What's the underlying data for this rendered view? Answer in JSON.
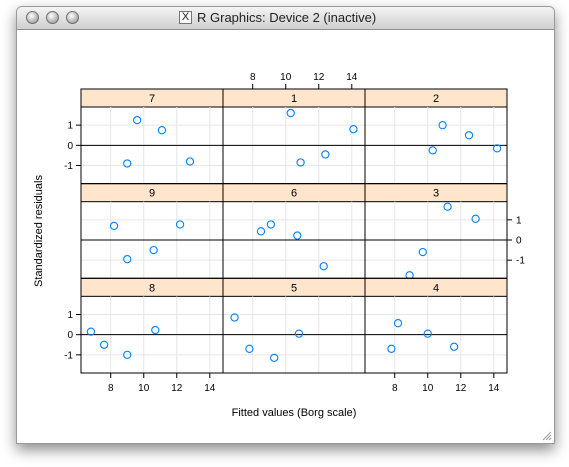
{
  "window": {
    "title": "R Graphics: Device 2 (inactive)",
    "x_badge": "X"
  },
  "colors": {
    "strip": "#ffe5cc",
    "point": "#0080ff",
    "refline": "#000000",
    "grid": "#e6e6e6"
  },
  "chart_data": {
    "type": "scatter",
    "layout": "3x3 trellis (lattice) with reference line at y=0",
    "xlabel": "Fitted values (Borg scale)",
    "ylabel": "Standardized residuals",
    "xlim": [
      6.2,
      14.8
    ],
    "ylim": [
      -1.9,
      1.9
    ],
    "x_ticks": [
      8,
      10,
      12,
      14
    ],
    "y_ticks": [
      -1,
      0,
      1
    ],
    "grid": true,
    "panels": [
      {
        "label": "7",
        "row": 0,
        "col": 0,
        "x": [
          9.0,
          9.6,
          11.1,
          12.8
        ],
        "y": [
          -0.9,
          1.25,
          0.75,
          -0.8
        ]
      },
      {
        "label": "1",
        "row": 0,
        "col": 1,
        "x": [
          10.3,
          10.9,
          12.4,
          14.1
        ],
        "y": [
          1.6,
          -0.85,
          -0.45,
          0.8
        ]
      },
      {
        "label": "2",
        "row": 0,
        "col": 2,
        "x": [
          10.3,
          10.9,
          12.5,
          14.2
        ],
        "y": [
          -0.25,
          1.0,
          0.5,
          -0.15
        ]
      },
      {
        "label": "9",
        "row": 1,
        "col": 0,
        "x": [
          8.2,
          9.0,
          10.6,
          12.2
        ],
        "y": [
          0.7,
          -0.95,
          -0.5,
          0.77
        ]
      },
      {
        "label": "6",
        "row": 1,
        "col": 1,
        "x": [
          8.5,
          9.1,
          10.7,
          12.3
        ],
        "y": [
          0.43,
          0.77,
          0.22,
          -1.3
        ]
      },
      {
        "label": "3",
        "row": 1,
        "col": 2,
        "x": [
          8.9,
          9.7,
          11.2,
          12.9
        ],
        "y": [
          -1.75,
          -0.6,
          1.65,
          1.05
        ]
      },
      {
        "label": "8",
        "row": 2,
        "col": 0,
        "x": [
          6.8,
          7.6,
          9.0,
          10.7
        ],
        "y": [
          0.15,
          -0.5,
          -1.0,
          0.23
        ]
      },
      {
        "label": "5",
        "row": 2,
        "col": 1,
        "x": [
          6.9,
          7.8,
          9.3,
          10.8
        ],
        "y": [
          0.85,
          -0.7,
          -1.15,
          0.05
        ]
      },
      {
        "label": "4",
        "row": 2,
        "col": 2,
        "x": [
          7.8,
          8.2,
          10.0,
          11.6
        ],
        "y": [
          -0.7,
          0.57,
          0.05,
          -0.6
        ]
      }
    ]
  }
}
